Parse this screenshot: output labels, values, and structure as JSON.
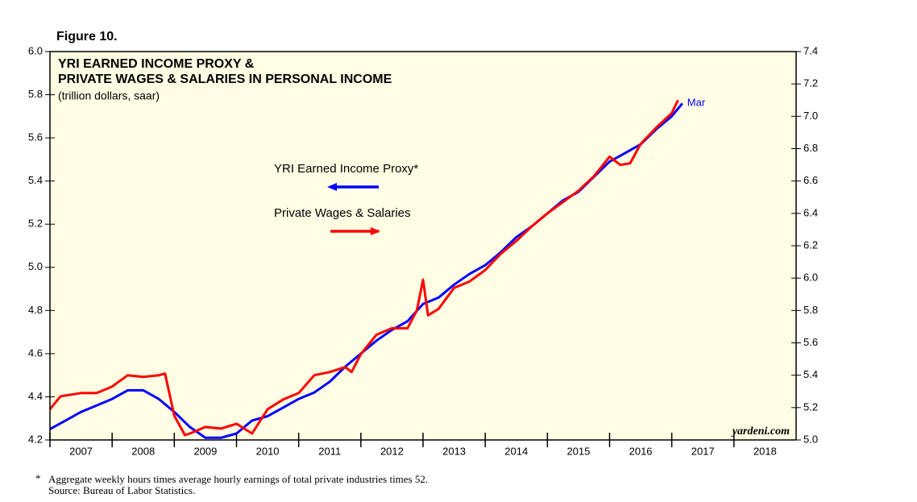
{
  "chart_data": {
    "type": "line",
    "figure_label": "Figure 10.",
    "title": [
      "YRI EARNED INCOME PROXY &",
      "PRIVATE WAGES & SALARIES IN PERSONAL INCOME"
    ],
    "subtitle": "(trillion dollars, saar)",
    "xlim": [
      2007,
      2019
    ],
    "xticks": [
      2007,
      2008,
      2009,
      2010,
      2011,
      2012,
      2013,
      2014,
      2015,
      2016,
      2017,
      2018
    ],
    "ylim": [
      4.2,
      6.0
    ],
    "yticks": [
      4.2,
      4.4,
      4.6,
      4.8,
      {
        "value": 5,
        "label": "5.0"
      },
      5.2,
      5.4,
      5.6,
      5.8,
      {
        "value": 6,
        "label": "6.0"
      }
    ],
    "y2lim": [
      5.0,
      7.4
    ],
    "y2ticks": [
      {
        "value": 5,
        "label": "5.0"
      },
      5.2,
      5.4,
      5.6,
      5.8,
      {
        "value": 6,
        "label": "6.0"
      },
      6.2,
      6.4,
      6.6,
      6.8,
      {
        "value": 7,
        "label": "7.0"
      },
      7.2,
      7.4
    ],
    "series": [
      {
        "name": "YRI Earned Income Proxy*",
        "color": "#0000ff",
        "x": [
          2007,
          2007.25,
          2007.5,
          2007.75,
          2008,
          2008.25,
          2008.5,
          2008.75,
          2009,
          2009.25,
          2009.5,
          2009.75,
          2010,
          2010.25,
          2010.5,
          2010.75,
          2011,
          2011.25,
          2011.5,
          2011.75,
          2012,
          2012.25,
          2012.5,
          2012.75,
          2013,
          2013.25,
          2013.5,
          2013.75,
          2014,
          2014.25,
          2014.5,
          2014.75,
          2015,
          2015.25,
          2015.5,
          2015.75,
          2016,
          2016.25,
          2016.5,
          2016.75,
          2017,
          2017.17
        ],
        "values": [
          4.25,
          4.29,
          4.33,
          4.36,
          4.39,
          4.43,
          4.43,
          4.39,
          4.33,
          4.26,
          4.21,
          4.21,
          4.23,
          4.29,
          4.31,
          4.35,
          4.39,
          4.42,
          4.47,
          4.54,
          4.6,
          4.66,
          4.71,
          4.75,
          4.83,
          4.86,
          4.92,
          4.97,
          5.01,
          5.07,
          5.14,
          5.19,
          5.25,
          5.31,
          5.35,
          5.42,
          5.49,
          5.53,
          5.57,
          5.64,
          5.7,
          5.76
        ]
      },
      {
        "name": "Private Wages & Salaries",
        "color": "#ff0000",
        "axis": "y2",
        "x": [
          2007,
          2007.17,
          2007.5,
          2007.75,
          2008,
          2008.25,
          2008.5,
          2008.75,
          2008.85,
          2009,
          2009.17,
          2009.25,
          2009.5,
          2009.75,
          2010,
          2010.25,
          2010.5,
          2010.75,
          2011,
          2011.25,
          2011.5,
          2011.75,
          2011.85,
          2012,
          2012.25,
          2012.5,
          2012.75,
          2012.9,
          2013,
          2013.08,
          2013.25,
          2013.5,
          2013.75,
          2014,
          2014.25,
          2014.5,
          2014.75,
          2015,
          2015.25,
          2015.5,
          2015.75,
          2016,
          2016.17,
          2016.33,
          2016.5,
          2016.75,
          2017,
          2017.1
        ],
        "values": [
          5.19,
          5.27,
          5.29,
          5.29,
          5.33,
          5.4,
          5.39,
          5.4,
          5.41,
          5.15,
          5.03,
          5.04,
          5.08,
          5.07,
          5.1,
          5.04,
          5.19,
          5.25,
          5.29,
          5.4,
          5.42,
          5.45,
          5.42,
          5.53,
          5.65,
          5.69,
          5.69,
          5.8,
          5.99,
          5.77,
          5.81,
          5.94,
          5.98,
          6.05,
          6.15,
          6.23,
          6.32,
          6.4,
          6.47,
          6.54,
          6.63,
          6.75,
          6.7,
          6.71,
          6.83,
          6.93,
          7.02,
          7.1
        ]
      }
    ],
    "end_label": "Mar",
    "source_mark": "yardeni.com",
    "footnote_marker": "*",
    "footnote": "Aggregate weekly hours times average hourly earnings of total private industries times 52.",
    "source": "Source: Bureau of Labor Statistics."
  }
}
